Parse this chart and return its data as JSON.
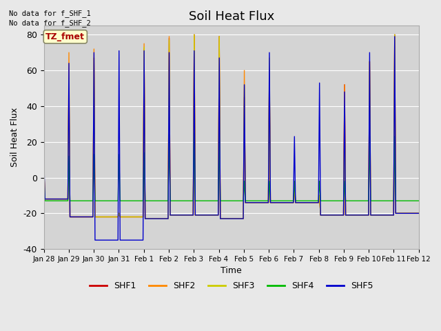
{
  "title": "Soil Heat Flux",
  "ylabel": "Soil Heat Flux",
  "xlabel": "Time",
  "ylim": [
    -40,
    85
  ],
  "background_color": "#e8e8e8",
  "plot_bg_color": "#d4d4d4",
  "series_colors": {
    "SHF1": "#cc0000",
    "SHF2": "#ff8800",
    "SHF3": "#cccc00",
    "SHF4": "#00bb00",
    "SHF5": "#0000cc"
  },
  "no_data_text": [
    "No data for f_SHF_1",
    "No data for f_SHF_2"
  ],
  "tz_label": "TZ_fmet",
  "yticks": [
    -40,
    -20,
    0,
    20,
    40,
    60,
    80
  ],
  "xtick_labels": [
    "Jan 28",
    "Jan 29",
    "Jan 30",
    "Jan 31",
    "Feb 1",
    "Feb 2",
    "Feb 3",
    "Feb 4",
    "Feb 5",
    "Feb 6",
    "Feb 7",
    "Feb 8",
    "Feb 9",
    "Feb 10",
    "Feb 11",
    "Feb 12"
  ],
  "legend_labels": [
    "SHF1",
    "SHF2",
    "SHF3",
    "SHF4",
    "SHF5"
  ],
  "figsize": [
    6.4,
    4.8
  ],
  "dpi": 100,
  "shf1": [
    7,
    -12,
    -12,
    -12,
    -12,
    -12,
    -12,
    -12,
    -12,
    -12,
    -12,
    -12,
    -12,
    -12,
    -12,
    -12,
    -12,
    -12,
    -12,
    -12,
    -12,
    -12,
    -12,
    -12,
    55,
    -22,
    -22,
    -22,
    -22,
    -22,
    -22,
    -22,
    -22,
    -22,
    -22,
    -22,
    -22,
    -22,
    -22,
    -22,
    -22,
    -22,
    -22,
    -22,
    -22,
    -22,
    -22,
    -22,
    67,
    -22,
    -22,
    -22,
    -22,
    -22,
    -22,
    -22,
    -22,
    -22,
    -22,
    -22,
    -22,
    -22,
    -22,
    -22,
    -22,
    -22,
    -22,
    -22,
    -22,
    -22,
    -22,
    -22,
    -20,
    -22,
    -22,
    -22,
    -22,
    -22,
    -22,
    -22,
    -22,
    -22,
    -22,
    -22,
    -22,
    -22,
    -22,
    -22,
    -22,
    -22,
    -22,
    -22,
    -22,
    -22,
    -22,
    -22,
    72,
    -23,
    -23,
    -23,
    -23,
    -23,
    -23,
    -23,
    -23,
    -23,
    -23,
    -23,
    -23,
    -23,
    -23,
    -23,
    -23,
    -23,
    -23,
    -23,
    -23,
    -23,
    -23,
    -23,
    78,
    -21,
    -21,
    -21,
    -21,
    -21,
    -21,
    -21,
    -21,
    -21,
    -21,
    -21,
    -21,
    -21,
    -21,
    -21,
    -21,
    -21,
    -21,
    -21,
    -21,
    -21,
    -21,
    -21,
    80,
    -21,
    -21,
    -21,
    -21,
    -21,
    -21,
    -21,
    -21,
    -21,
    -21,
    -21,
    -21,
    -21,
    -21,
    -21,
    -21,
    -21,
    -21,
    -21,
    -21,
    -21,
    -21,
    -21,
    79,
    -23,
    -23,
    -23,
    -23,
    -23,
    -23,
    -23,
    -23,
    -23,
    -23,
    -23,
    -23,
    -23,
    -23,
    -23,
    -23,
    -23,
    -23,
    -23,
    -23,
    -23,
    -23,
    -23,
    45,
    -14,
    -14,
    -14,
    -14,
    -14,
    -14,
    -14,
    -14,
    -14,
    -14,
    -14,
    -14,
    -14,
    -14,
    -14,
    -14,
    -14,
    -14,
    -14,
    -14,
    -14,
    -14,
    -14,
    60,
    -14,
    -14,
    -14,
    -14,
    -14,
    -14,
    -14,
    -14,
    -14,
    -14,
    -14,
    -14,
    -14,
    -14,
    -14,
    -14,
    -14,
    -14,
    -14,
    -14,
    -14,
    -14,
    -14,
    -5,
    -14,
    -14,
    -14,
    -14,
    -14,
    -14,
    -14,
    -14,
    -14,
    -14,
    -14,
    -14,
    -14,
    -14,
    -14,
    -14,
    -14,
    -14,
    -14,
    -14,
    -14,
    -14,
    -14,
    -10,
    -21,
    -21,
    -21,
    -21,
    -21,
    -21,
    -21,
    -21,
    -21,
    -21,
    -21,
    -21,
    -21,
    -21,
    -21,
    -21,
    -21,
    -21,
    -21,
    -21,
    -21,
    -21,
    -21,
    52,
    -21,
    -21,
    -21,
    -21,
    -21,
    -21,
    -21,
    -21,
    -21,
    -21,
    -21,
    -21,
    -21,
    -21,
    -21,
    -21,
    -21,
    -21,
    -21,
    -21,
    -21,
    -21,
    -21,
    65,
    -21,
    -21,
    -21,
    -21,
    -21,
    -21,
    -21,
    -21,
    -21,
    -21,
    -21,
    -21,
    -21,
    -21,
    -21,
    -21,
    -21,
    -21,
    -21,
    -21,
    -21,
    -21,
    -21,
    80,
    -20,
    -20,
    -20,
    -20,
    -20,
    -20,
    -20,
    -20,
    -20,
    -20,
    -20,
    -20,
    -20,
    -20,
    -20,
    -20,
    -20,
    -20,
    -20,
    -20,
    -20,
    -20,
    -20
  ],
  "shf2": [
    7,
    -12,
    -12,
    -12,
    -12,
    -12,
    -12,
    -12,
    -12,
    -12,
    -12,
    -12,
    -12,
    -12,
    -12,
    -12,
    -12,
    -12,
    -12,
    -12,
    -12,
    -12,
    -12,
    -12,
    70,
    -22,
    -22,
    -22,
    -22,
    -22,
    -22,
    -22,
    -22,
    -22,
    -22,
    -22,
    -22,
    -22,
    -22,
    -22,
    -22,
    -22,
    -22,
    -22,
    -22,
    -22,
    -22,
    -22,
    72,
    -22,
    -22,
    -22,
    -22,
    -22,
    -22,
    -22,
    -22,
    -22,
    -22,
    -22,
    -22,
    -22,
    -22,
    -22,
    -22,
    -22,
    -22,
    -22,
    -22,
    -22,
    -22,
    -22,
    -20,
    -22,
    -22,
    -22,
    -22,
    -22,
    -22,
    -22,
    -22,
    -22,
    -22,
    -22,
    -22,
    -22,
    -22,
    -22,
    -22,
    -22,
    -22,
    -22,
    -22,
    -22,
    -22,
    -22,
    75,
    -23,
    -23,
    -23,
    -23,
    -23,
    -23,
    -23,
    -23,
    -23,
    -23,
    -23,
    -23,
    -23,
    -23,
    -23,
    -23,
    -23,
    -23,
    -23,
    -23,
    -23,
    -23,
    -23,
    79,
    -21,
    -21,
    -21,
    -21,
    -21,
    -21,
    -21,
    -21,
    -21,
    -21,
    -21,
    -21,
    -21,
    -21,
    -21,
    -21,
    -21,
    -21,
    -21,
    -21,
    -21,
    -21,
    -21,
    80,
    -21,
    -21,
    -21,
    -21,
    -21,
    -21,
    -21,
    -21,
    -21,
    -21,
    -21,
    -21,
    -21,
    -21,
    -21,
    -21,
    -21,
    -21,
    -21,
    -21,
    -21,
    -21,
    -21,
    79,
    -23,
    -23,
    -23,
    -23,
    -23,
    -23,
    -23,
    -23,
    -23,
    -23,
    -23,
    -23,
    -23,
    -23,
    -23,
    -23,
    -23,
    -23,
    -23,
    -23,
    -23,
    -23,
    -23,
    60,
    -14,
    -14,
    -14,
    -14,
    -14,
    -14,
    -14,
    -14,
    -14,
    -14,
    -14,
    -14,
    -14,
    -14,
    -14,
    -14,
    -14,
    -14,
    -14,
    -14,
    -14,
    -14,
    -14,
    61,
    -14,
    -14,
    -14,
    -14,
    -14,
    -14,
    -14,
    -14,
    -14,
    -14,
    -14,
    -14,
    -14,
    -14,
    -14,
    -14,
    -14,
    -14,
    -14,
    -14,
    -14,
    -14,
    -14,
    -5,
    -14,
    -14,
    -14,
    -14,
    -14,
    -14,
    -14,
    -14,
    -14,
    -14,
    -14,
    -14,
    -14,
    -14,
    -14,
    -14,
    -14,
    -14,
    -14,
    -14,
    -14,
    -14,
    -14,
    -10,
    -21,
    -21,
    -21,
    -21,
    -21,
    -21,
    -21,
    -21,
    -21,
    -21,
    -21,
    -21,
    -21,
    -21,
    -21,
    -21,
    -21,
    -21,
    -21,
    -21,
    -21,
    -21,
    -21,
    52,
    -21,
    -21,
    -21,
    -21,
    -21,
    -21,
    -21,
    -21,
    -21,
    -21,
    -21,
    -21,
    -21,
    -21,
    -21,
    -21,
    -21,
    -21,
    -21,
    -21,
    -21,
    -21,
    -21,
    65,
    -21,
    -21,
    -21,
    -21,
    -21,
    -21,
    -21,
    -21,
    -21,
    -21,
    -21,
    -21,
    -21,
    -21,
    -21,
    -21,
    -21,
    -21,
    -21,
    -21,
    -21,
    -21,
    -21,
    80,
    -20,
    -20,
    -20,
    -20,
    -20,
    -20,
    -20,
    -20,
    -20,
    -20,
    -20,
    -20,
    -20,
    -20,
    -20,
    -20,
    -20,
    -20,
    -20,
    -20,
    -20,
    -20,
    -20
  ],
  "shf3": [
    7,
    -12,
    -12,
    -12,
    -12,
    -12,
    -12,
    -12,
    -12,
    -12,
    -12,
    -12,
    -12,
    -12,
    -12,
    -12,
    -12,
    -12,
    -12,
    -12,
    -12,
    -12,
    -12,
    -12,
    55,
    -22,
    -22,
    -22,
    -22,
    -22,
    -22,
    -22,
    -22,
    -22,
    -22,
    -22,
    -22,
    -22,
    -22,
    -22,
    -22,
    -22,
    -22,
    -22,
    -22,
    -22,
    -22,
    -22,
    67,
    -22,
    -22,
    -22,
    -22,
    -22,
    -22,
    -22,
    -22,
    -22,
    -22,
    -22,
    -22,
    -22,
    -22,
    -22,
    -22,
    -22,
    -22,
    -22,
    -22,
    -22,
    -22,
    -22,
    -20,
    -22,
    -22,
    -22,
    -22,
    -22,
    -22,
    -22,
    -22,
    -22,
    -22,
    -22,
    -22,
    -22,
    -22,
    -22,
    -22,
    -22,
    -22,
    -22,
    -22,
    -22,
    -22,
    -22,
    73,
    -23,
    -23,
    -23,
    -23,
    -23,
    -23,
    -23,
    -23,
    -23,
    -23,
    -23,
    -23,
    -23,
    -23,
    -23,
    -23,
    -23,
    -23,
    -23,
    -23,
    -23,
    -23,
    -23,
    77,
    -21,
    -21,
    -21,
    -21,
    -21,
    -21,
    -21,
    -21,
    -21,
    -21,
    -21,
    -21,
    -21,
    -21,
    -21,
    -21,
    -21,
    -21,
    -21,
    -21,
    -21,
    -21,
    -21,
    80,
    -21,
    -21,
    -21,
    -21,
    -21,
    -21,
    -21,
    -21,
    -21,
    -21,
    -21,
    -21,
    -21,
    -21,
    -21,
    -21,
    -21,
    -21,
    -21,
    -21,
    -21,
    -21,
    -21,
    79,
    -23,
    -23,
    -23,
    -23,
    -23,
    -23,
    -23,
    -23,
    -23,
    -23,
    -23,
    -23,
    -23,
    -23,
    -23,
    -23,
    -23,
    -23,
    -23,
    -23,
    -23,
    -23,
    -23,
    52,
    -14,
    -14,
    -14,
    -14,
    -14,
    -14,
    -14,
    -14,
    -14,
    -14,
    -14,
    -14,
    -14,
    -14,
    -14,
    -14,
    -14,
    -14,
    -14,
    -14,
    -14,
    -14,
    -14,
    67,
    -14,
    -14,
    -14,
    -14,
    -14,
    -14,
    -14,
    -14,
    -14,
    -14,
    -14,
    -14,
    -14,
    -14,
    -14,
    -14,
    -14,
    -14,
    -14,
    -14,
    -14,
    -14,
    -14,
    -5,
    -14,
    -14,
    -14,
    -14,
    -14,
    -14,
    -14,
    -14,
    -14,
    -14,
    -14,
    -14,
    -14,
    -14,
    -14,
    -14,
    -14,
    -14,
    -14,
    -14,
    -14,
    -14,
    -14,
    -10,
    -21,
    -21,
    -21,
    -21,
    -21,
    -21,
    -21,
    -21,
    -21,
    -21,
    -21,
    -21,
    -21,
    -21,
    -21,
    -21,
    -21,
    -21,
    -21,
    -21,
    -21,
    -21,
    -21,
    34,
    -21,
    -21,
    -21,
    -21,
    -21,
    -21,
    -21,
    -21,
    -21,
    -21,
    -21,
    -21,
    -21,
    -21,
    -21,
    -21,
    -21,
    -21,
    -21,
    -21,
    -21,
    -21,
    -21,
    65,
    -21,
    -21,
    -21,
    -21,
    -21,
    -21,
    -21,
    -21,
    -21,
    -21,
    -21,
    -21,
    -21,
    -21,
    -21,
    -21,
    -21,
    -21,
    -21,
    -21,
    -21,
    -21,
    -21,
    80,
    -20,
    -20,
    -20,
    -20,
    -20,
    -20,
    -20,
    -20,
    -20,
    -20,
    -20,
    -20,
    -20,
    -20,
    -20,
    -20,
    -20,
    -20,
    -20,
    -20,
    -20,
    -20,
    -20
  ],
  "shf4": [
    1,
    -13,
    -13,
    -13,
    -13,
    -13,
    -13,
    -13,
    -13,
    -13,
    -13,
    -13,
    -13,
    -13,
    -13,
    -13,
    -13,
    -13,
    -13,
    -13,
    -13,
    -13,
    -13,
    -13,
    12,
    -13,
    -13,
    -13,
    -13,
    -13,
    -13,
    -13,
    -13,
    -13,
    -13,
    -13,
    -13,
    -13,
    -13,
    -13,
    -13,
    -13,
    -13,
    -13,
    -13,
    -13,
    -13,
    -13,
    13,
    -13,
    -13,
    -13,
    -13,
    -13,
    -13,
    -13,
    -13,
    -13,
    -13,
    -13,
    -13,
    -13,
    -13,
    -13,
    -13,
    -13,
    -13,
    -13,
    -13,
    -13,
    -13,
    -13,
    13,
    -13,
    -13,
    -13,
    -13,
    -13,
    -13,
    -13,
    -13,
    -13,
    -13,
    -13,
    -13,
    -13,
    -13,
    -13,
    -13,
    -13,
    -13,
    -13,
    -13,
    -13,
    -13,
    -13,
    14,
    -13,
    -13,
    -13,
    -13,
    -13,
    -13,
    -13,
    -13,
    -13,
    -13,
    -13,
    -13,
    -13,
    -13,
    -13,
    -13,
    -13,
    -13,
    -13,
    -13,
    -13,
    -13,
    -13,
    24,
    -13,
    -13,
    -13,
    -13,
    -13,
    -13,
    -13,
    -13,
    -13,
    -13,
    -13,
    -13,
    -13,
    -13,
    -13,
    -13,
    -13,
    -13,
    -13,
    -13,
    -13,
    -13,
    -13,
    25,
    -13,
    -13,
    -13,
    -13,
    -13,
    -13,
    -13,
    -13,
    -13,
    -13,
    -13,
    -13,
    -13,
    -13,
    -13,
    -13,
    -13,
    -13,
    -13,
    -13,
    -13,
    -13,
    -13,
    25,
    -13,
    -13,
    -13,
    -13,
    -13,
    -13,
    -13,
    -13,
    -13,
    -13,
    -13,
    -13,
    -13,
    -13,
    -13,
    -13,
    -13,
    -13,
    -13,
    -13,
    -13,
    -13,
    -13,
    -2,
    -13,
    -13,
    -13,
    -13,
    -13,
    -13,
    -13,
    -13,
    -13,
    -13,
    -13,
    -13,
    -13,
    -13,
    -13,
    -13,
    -13,
    -13,
    -13,
    -13,
    -13,
    -13,
    -13,
    -2,
    -13,
    -13,
    -13,
    -13,
    -13,
    -13,
    -13,
    -13,
    -13,
    -13,
    -13,
    -13,
    -13,
    -13,
    -13,
    -13,
    -13,
    -13,
    -13,
    -13,
    -13,
    -13,
    -13,
    -2,
    -13,
    -13,
    -13,
    -13,
    -13,
    -13,
    -13,
    -13,
    -13,
    -13,
    -13,
    -13,
    -13,
    -13,
    -13,
    -13,
    -13,
    -13,
    -13,
    -13,
    -13,
    -13,
    -13,
    -2,
    -13,
    -13,
    -13,
    -13,
    -13,
    -13,
    -13,
    -13,
    -13,
    -13,
    -13,
    -13,
    -13,
    -13,
    -13,
    -13,
    -13,
    -13,
    -13,
    -13,
    -13,
    -13,
    -13,
    -2,
    -13,
    -13,
    -13,
    -13,
    -13,
    -13,
    -13,
    -13,
    -13,
    -13,
    -13,
    -13,
    -13,
    -13,
    -13,
    -13,
    -13,
    -13,
    -13,
    -13,
    -13,
    -13,
    -13,
    23,
    -13,
    -13,
    -13,
    -13,
    -13,
    -13,
    -13,
    -13,
    -13,
    -13,
    -13,
    -13,
    -13,
    -13,
    -13,
    -13,
    -13,
    -13,
    -13,
    -13,
    -13,
    -13,
    -13,
    23,
    -13,
    -13,
    -13,
    -13,
    -13,
    -13,
    -13,
    -13,
    -13,
    -13,
    -13,
    -13,
    -13,
    -13,
    -13,
    -13,
    -13,
    -13,
    -13,
    -13,
    -13,
    -13,
    -13
  ],
  "shf5": [
    12,
    -12,
    -12,
    -12,
    -12,
    -12,
    -12,
    -12,
    -12,
    -12,
    -12,
    -12,
    -12,
    -12,
    -12,
    -12,
    -12,
    -12,
    -12,
    -12,
    -12,
    -12,
    -12,
    -12,
    64,
    -22,
    -22,
    -22,
    -22,
    -22,
    -22,
    -22,
    -22,
    -22,
    -22,
    -22,
    -22,
    -22,
    -22,
    -22,
    -22,
    -22,
    -22,
    -22,
    -22,
    -22,
    -22,
    -22,
    70,
    -35,
    -35,
    -35,
    -35,
    -35,
    -35,
    -35,
    -35,
    -35,
    -35,
    -35,
    -35,
    -35,
    -35,
    -35,
    -35,
    -35,
    -35,
    -35,
    -35,
    -35,
    -35,
    -35,
    71,
    -35,
    -35,
    -35,
    -35,
    -35,
    -35,
    -35,
    -35,
    -35,
    -35,
    -35,
    -35,
    -35,
    -35,
    -35,
    -35,
    -35,
    -35,
    -35,
    -35,
    -35,
    -35,
    -35,
    71,
    -23,
    -23,
    -23,
    -23,
    -23,
    -23,
    -23,
    -23,
    -23,
    -23,
    -23,
    -23,
    -23,
    -23,
    -23,
    -23,
    -23,
    -23,
    -23,
    -23,
    -23,
    -23,
    -23,
    70,
    -21,
    -21,
    -21,
    -21,
    -21,
    -21,
    -21,
    -21,
    -21,
    -21,
    -21,
    -21,
    -21,
    -21,
    -21,
    -21,
    -21,
    -21,
    -21,
    -21,
    -21,
    -21,
    -21,
    71,
    -21,
    -21,
    -21,
    -21,
    -21,
    -21,
    -21,
    -21,
    -21,
    -21,
    -21,
    -21,
    -21,
    -21,
    -21,
    -21,
    -21,
    -21,
    -21,
    -21,
    -21,
    -21,
    -21,
    67,
    -23,
    -23,
    -23,
    -23,
    -23,
    -23,
    -23,
    -23,
    -23,
    -23,
    -23,
    -23,
    -23,
    -23,
    -23,
    -23,
    -23,
    -23,
    -23,
    -23,
    -23,
    -23,
    -23,
    52,
    -14,
    -14,
    -14,
    -14,
    -14,
    -14,
    -14,
    -14,
    -14,
    -14,
    -14,
    -14,
    -14,
    -14,
    -14,
    -14,
    -14,
    -14,
    -14,
    -14,
    -14,
    -14,
    -14,
    70,
    -14,
    -14,
    -14,
    -14,
    -14,
    -14,
    -14,
    -14,
    -14,
    -14,
    -14,
    -14,
    -14,
    -14,
    -14,
    -14,
    -14,
    -14,
    -14,
    -14,
    -14,
    -14,
    -14,
    23,
    -14,
    -14,
    -14,
    -14,
    -14,
    -14,
    -14,
    -14,
    -14,
    -14,
    -14,
    -14,
    -14,
    -14,
    -14,
    -14,
    -14,
    -14,
    -14,
    -14,
    -14,
    -14,
    -14,
    53,
    -21,
    -21,
    -21,
    -21,
    -21,
    -21,
    -21,
    -21,
    -21,
    -21,
    -21,
    -21,
    -21,
    -21,
    -21,
    -21,
    -21,
    -21,
    -21,
    -21,
    -21,
    -21,
    -21,
    48,
    -21,
    -21,
    -21,
    -21,
    -21,
    -21,
    -21,
    -21,
    -21,
    -21,
    -21,
    -21,
    -21,
    -21,
    -21,
    -21,
    -21,
    -21,
    -21,
    -21,
    -21,
    -21,
    -21,
    70,
    -21,
    -21,
    -21,
    -21,
    -21,
    -21,
    -21,
    -21,
    -21,
    -21,
    -21,
    -21,
    -21,
    -21,
    -21,
    -21,
    -21,
    -21,
    -21,
    -21,
    -21,
    -21,
    -21,
    79,
    -20,
    -20,
    -20,
    -20,
    -20,
    -20,
    -20,
    -20,
    -20,
    -20,
    -20,
    -20,
    -20,
    -20,
    -20,
    -20,
    -20,
    -20,
    -20,
    -20,
    -20,
    -20,
    -20
  ]
}
